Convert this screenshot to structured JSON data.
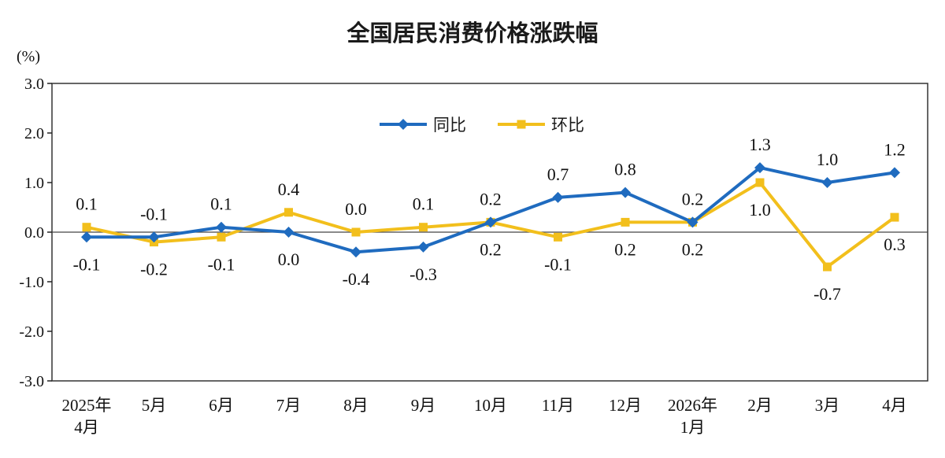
{
  "chart_data": {
    "type": "line",
    "title": "全国居民消费价格涨跌幅",
    "ylabel": "(%)",
    "ylim": [
      -3.0,
      3.0
    ],
    "yticks": [
      "3.0",
      "2.0",
      "1.0",
      "0.0",
      "-1.0",
      "-2.0",
      "-3.0"
    ],
    "ytick_values": [
      3,
      2,
      1,
      0,
      -1,
      -2,
      -3
    ],
    "categories": [
      [
        "2025年",
        "4月"
      ],
      [
        "5月"
      ],
      [
        "6月"
      ],
      [
        "7月"
      ],
      [
        "8月"
      ],
      [
        "9月"
      ],
      [
        "10月"
      ],
      [
        "11月"
      ],
      [
        "12月"
      ],
      [
        "2026年",
        "1月"
      ],
      [
        "2月"
      ],
      [
        "3月"
      ],
      [
        "4月"
      ]
    ],
    "grid": false,
    "legend": "top-right",
    "series": [
      {
        "name": "同比",
        "color": "#1f6bbf",
        "marker": "diamond",
        "values": [
          -0.1,
          -0.1,
          0.1,
          0.0,
          -0.4,
          -0.3,
          0.2,
          0.7,
          0.8,
          0.2,
          1.3,
          1.0,
          1.2
        ],
        "labels": [
          "-0.1",
          "-0.1",
          "0.1",
          "0.0",
          "-0.4",
          "-0.3",
          "0.2",
          "0.7",
          "0.8",
          "0.2",
          "1.3",
          "1.0",
          "1.2"
        ]
      },
      {
        "name": "环比",
        "color": "#f2bf1c",
        "marker": "square",
        "values": [
          0.1,
          -0.2,
          -0.1,
          0.4,
          0.0,
          0.1,
          0.2,
          -0.1,
          0.2,
          0.2,
          1.0,
          -0.7,
          0.3
        ],
        "labels": [
          "0.1",
          "-0.2",
          "-0.1",
          "0.4",
          "0.0",
          "0.1",
          "0.2",
          "-0.1",
          "0.2",
          "0.2",
          "1.0",
          "-0.7",
          "0.3"
        ]
      }
    ]
  }
}
